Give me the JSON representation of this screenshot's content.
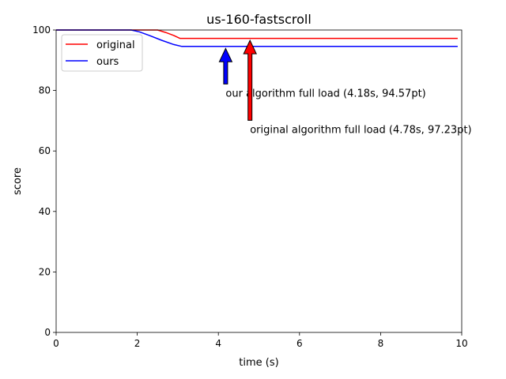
{
  "chart_data": {
    "type": "line",
    "title": "us-160-fastscroll",
    "xlabel": "time (s)",
    "ylabel": "score",
    "xlim": [
      0,
      10
    ],
    "ylim": [
      0,
      100
    ],
    "xticks": [
      0,
      2,
      4,
      6,
      8,
      10
    ],
    "yticks": [
      0,
      20,
      40,
      60,
      80,
      100
    ],
    "grid": false,
    "legend_position": "upper-left",
    "series": [
      {
        "name": "original",
        "color": "#ff0000",
        "x": [
          0,
          2.5,
          2.7,
          2.9,
          3.05,
          3.2,
          9.9
        ],
        "y": [
          100,
          100,
          99.2,
          98.2,
          97.23,
          97.23,
          97.23
        ]
      },
      {
        "name": "ours",
        "color": "#0000ff",
        "x": [
          0,
          1.85,
          2.05,
          2.3,
          2.6,
          2.9,
          3.1,
          3.3,
          9.9
        ],
        "y": [
          100,
          100,
          99.4,
          98.2,
          96.6,
          95.2,
          94.57,
          94.57,
          94.57
        ]
      }
    ],
    "annotations": [
      {
        "text": "our algorithm full load (4.18s, 94.57pt)",
        "x": 4.18,
        "y": 94.57,
        "text_x": 4.18,
        "text_y": 79,
        "color": "#0000ff"
      },
      {
        "text": "original algorithm full load (4.78s, 97.23pt)",
        "x": 4.78,
        "y": 97.23,
        "text_x": 4.78,
        "text_y": 67,
        "color": "#ff0000"
      }
    ]
  }
}
